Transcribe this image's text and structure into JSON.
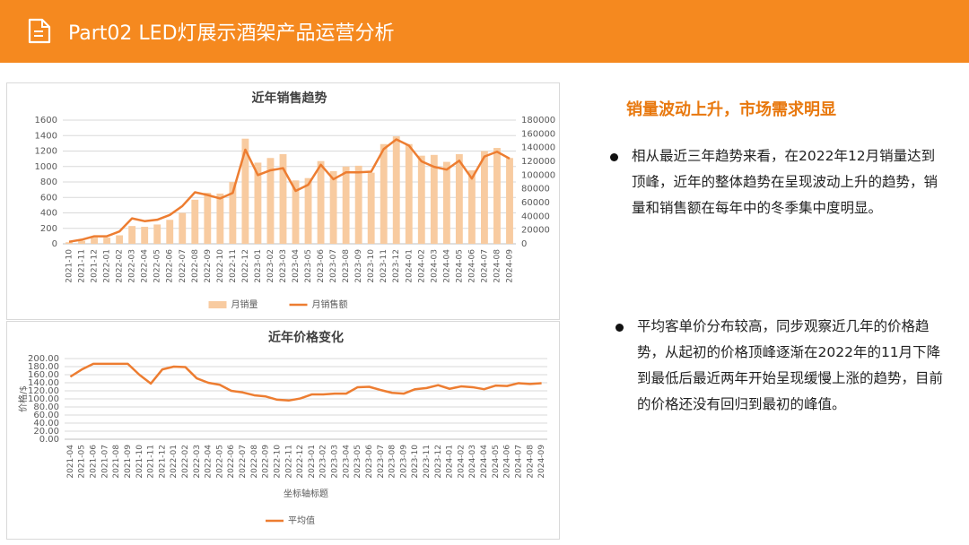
{
  "header": {
    "title": "Part02 LED灯展示酒架产品运营分析"
  },
  "notes": {
    "heading": "销量波动上升，市场需求明显",
    "bullets": [
      "相从最近三年趋势来看，在2022年12月销量达到顶峰，近年的整体趋势在呈现波动上升的趋势，销量和销售额在每年中的冬季集中度明显。",
      "平均客单价分布较高，同步观察近几年的价格趋势，从起初的价格顶峰逐渐在2022年的11月下降到最低后最近两年开始呈现缓慢上涨的趋势，目前的价格还没有回归到最初的峰值。"
    ]
  },
  "chart_data": [
    {
      "type": "bar",
      "title": "近年销售趋势",
      "categories": [
        "2021-10",
        "2021-11",
        "2021-12",
        "2022-01",
        "2022-02",
        "2022-03",
        "2022-04",
        "2022-05",
        "2022-06",
        "2022-07",
        "2022-08",
        "2022-09",
        "2022-10",
        "2022-11",
        "2022-12",
        "2023-01",
        "2023-02",
        "2023-03",
        "2023-04",
        "2023-05",
        "2023-06",
        "2023-07",
        "2023-08",
        "2023-09",
        "2023-10",
        "2023-11",
        "2023-12",
        "2024-01",
        "2024-02",
        "2024-03",
        "2024-04",
        "2024-05",
        "2024-06",
        "2024-07",
        "2024-08",
        "2024-09"
      ],
      "series": [
        {
          "name": "月销量",
          "type": "bar",
          "color": "#f8cba0",
          "values": [
            20,
            40,
            80,
            80,
            110,
            230,
            220,
            250,
            310,
            400,
            570,
            660,
            650,
            800,
            1360,
            1050,
            1110,
            1160,
            820,
            850,
            1070,
            940,
            1000,
            1010,
            920,
            1290,
            1390,
            1290,
            1140,
            1150,
            1060,
            1160,
            950,
            1200,
            1240,
            1110
          ]
        },
        {
          "name": "月销售额",
          "type": "line",
          "axis": "y2",
          "color": "#ed7d31",
          "values": [
            3000,
            6000,
            11000,
            11000,
            18000,
            37000,
            33000,
            35000,
            42000,
            55000,
            75000,
            71000,
            66000,
            74000,
            137000,
            100000,
            107000,
            110000,
            77000,
            86000,
            115000,
            94000,
            104000,
            104000,
            105000,
            138000,
            152000,
            143000,
            120000,
            112000,
            108000,
            121000,
            95000,
            127000,
            134000,
            124000
          ]
        }
      ],
      "ylim": [
        0,
        1600
      ],
      "yticks": [
        0,
        200,
        400,
        600,
        800,
        1000,
        1200,
        1400,
        1600
      ],
      "y2lim": [
        0,
        180000
      ],
      "y2ticks": [
        0,
        20000,
        40000,
        60000,
        80000,
        100000,
        120000,
        140000,
        160000,
        180000
      ],
      "grid": true,
      "legend": "bottom"
    },
    {
      "type": "line",
      "title": "近年价格变化",
      "xlabel": "坐标轴标题",
      "ylabel": "价格/$",
      "categories": [
        "2021-04",
        "2021-05",
        "2021-06",
        "2021-07",
        "2021-08",
        "2021-09",
        "2021-10",
        "2021-11",
        "2021-12",
        "2022-01",
        "2022-02",
        "2022-03",
        "2022-04",
        "2022-05",
        "2022-06",
        "2022-07",
        "2022-08",
        "2022-09",
        "2022-10",
        "2022-11",
        "2022-12",
        "2023-01",
        "2023-02",
        "2023-03",
        "2023-04",
        "2023-05",
        "2023-06",
        "2023-07",
        "2023-08",
        "2023-09",
        "2023-10",
        "2023-11",
        "2023-12",
        "2024-01",
        "2024-02",
        "2024-03",
        "2024-04",
        "2024-05",
        "2024-06",
        "2024-07",
        "2024-08",
        "2024-09"
      ],
      "series": [
        {
          "name": "平均值",
          "type": "line",
          "color": "#ed7d31",
          "values": [
            155,
            173,
            187,
            187,
            187,
            187,
            160,
            138,
            173,
            180,
            179,
            151,
            140,
            135,
            120,
            116,
            109,
            106,
            98,
            96,
            101,
            111,
            111,
            113,
            113,
            129,
            130,
            122,
            115,
            113,
            124,
            127,
            134,
            125,
            131,
            129,
            124,
            133,
            132,
            139,
            137,
            139
          ]
        }
      ],
      "ylim": [
        0,
        200
      ],
      "yticks": [
        {
          "value": 0,
          "label": "0.00"
        },
        {
          "value": 20,
          "label": "20.00"
        },
        {
          "value": 40,
          "label": "40.00"
        },
        {
          "value": 60,
          "label": "60.00"
        },
        {
          "value": 80,
          "label": "80.00"
        },
        {
          "value": 100,
          "label": "100.00"
        },
        {
          "value": 120,
          "label": "120.00"
        },
        {
          "value": 140,
          "label": "140.00"
        },
        {
          "value": 160,
          "label": "160.00"
        },
        {
          "value": 180,
          "label": "180.00"
        },
        {
          "value": 200,
          "label": "200.00"
        }
      ],
      "grid": true,
      "legend": "bottom"
    }
  ]
}
